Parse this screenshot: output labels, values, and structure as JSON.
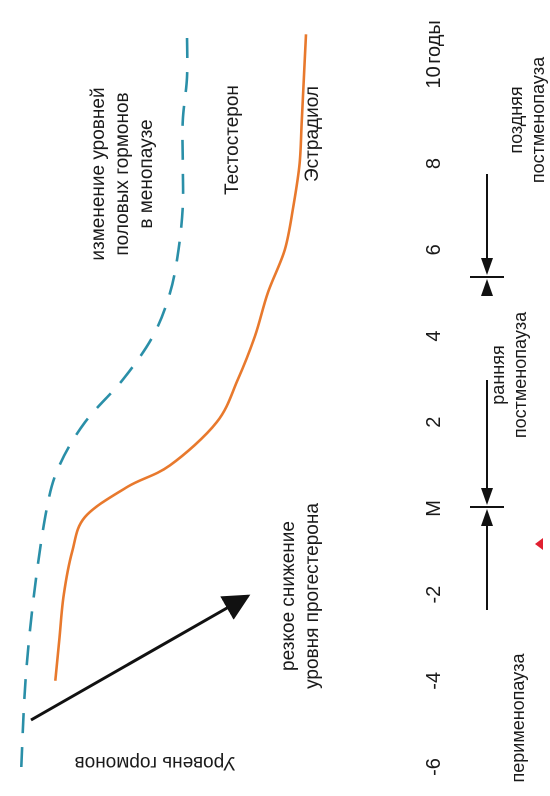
{
  "chart_data": {
    "type": "line",
    "orientation": "rotated-90-clockwise",
    "title": "изменение уровней половых гормонов в менопаузе",
    "title_lines": [
      "изменение уровней",
      "половых гормонов",
      "в менопаузе"
    ],
    "ylabel": "Уровень гормонов",
    "x_unit": "годы",
    "x_ticks": [
      "-6",
      "-4",
      "-2",
      "M",
      "2",
      "4",
      "6",
      "8",
      "10"
    ],
    "x_tick_values": [
      -6,
      -4,
      -2,
      0,
      2,
      4,
      6,
      8,
      10
    ],
    "xlim": [
      -6,
      11
    ],
    "ylim": [
      0,
      10
    ],
    "series": [
      {
        "name": "Тестостерон",
        "style": "dashed",
        "color": "#2a8fa8",
        "x": [
          -6,
          -4,
          -2,
          0,
          1,
          2,
          3,
          4,
          5,
          6,
          7,
          8,
          9,
          10,
          11
        ],
        "y": [
          9.5,
          9.4,
          9.2,
          8.9,
          8.6,
          8.0,
          7.1,
          6.4,
          6.0,
          5.8,
          5.7,
          5.7,
          5.7,
          5.6,
          5.6
        ]
      },
      {
        "name": "Эстрадиол",
        "style": "solid",
        "color": "#e8792d",
        "x": [
          -4,
          -3,
          -2,
          -1,
          -0.2,
          0.5,
          1,
          2,
          3,
          4,
          5,
          6,
          7,
          8,
          9,
          10,
          11
        ],
        "y": [
          8.7,
          8.6,
          8.5,
          8.3,
          8.0,
          7.0,
          6.0,
          4.9,
          4.4,
          4.0,
          3.7,
          3.3,
          3.1,
          2.95,
          2.9,
          2.85,
          2.8
        ]
      }
    ],
    "annotations": {
      "progesterone": [
        "резкое снижение",
        "уровня прогестерона"
      ],
      "phases": {
        "perimenopause": "перименопауза",
        "early_postmenopause": [
          "ранняя",
          "постменопауза"
        ],
        "late_postmenopause": [
          "поздняя",
          "постменопауза"
        ]
      }
    }
  }
}
